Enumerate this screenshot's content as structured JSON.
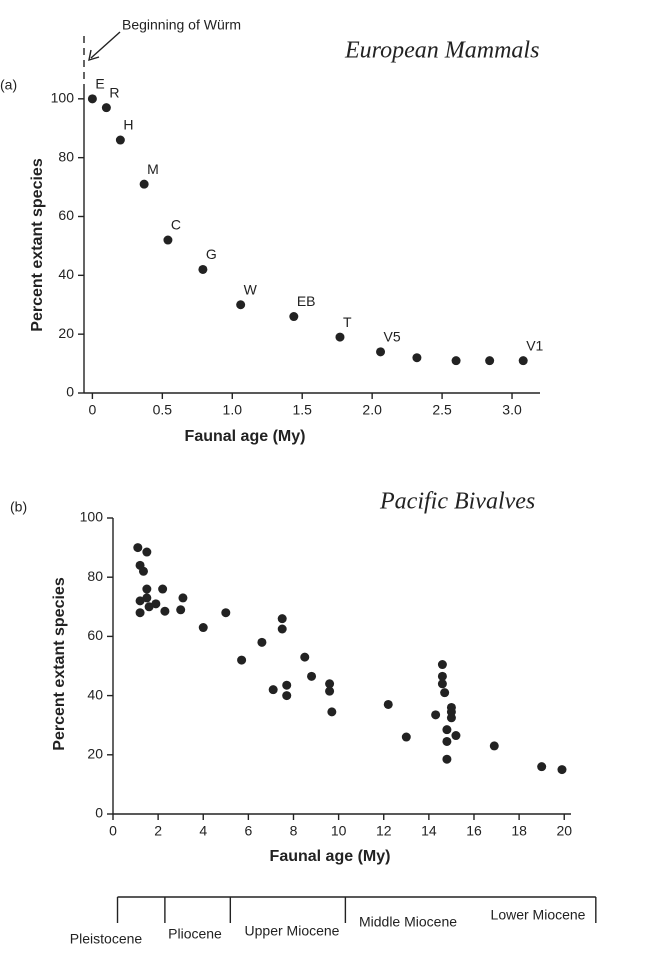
{
  "chart_data": [
    {
      "type": "scatter",
      "panel_label": "(a)",
      "handwritten_title": "European Mammals",
      "annotation": "Beginning of Würm",
      "x_label": "Faunal age (My)",
      "y_label": "Percent extant species",
      "xlim": [
        -0.06,
        3.2
      ],
      "ylim": [
        0,
        103
      ],
      "xticks": [
        0,
        0.5,
        {
          "value": 1,
          "label": "1.0"
        },
        1.5,
        {
          "value": 2,
          "label": "2.0"
        },
        2.5,
        {
          "value": 3,
          "label": "3.0"
        }
      ],
      "yticks": [
        0,
        20,
        40,
        60,
        80,
        100
      ],
      "color": "#222222",
      "x": [
        0,
        0.1,
        0.2,
        0.37,
        0.54,
        0.79,
        1.06,
        1.44,
        1.77,
        2.06,
        2.32,
        2.6,
        2.84,
        3.08
      ],
      "values": [
        100,
        97,
        86,
        71,
        52,
        42,
        30,
        26,
        19,
        14,
        12,
        11,
        11,
        11
      ],
      "point_labels": [
        "E",
        "R",
        "H",
        "M",
        "C",
        "G",
        "W",
        "EB",
        "T",
        "V5",
        null,
        null,
        null,
        "V1"
      ]
    },
    {
      "type": "scatter",
      "panel_label": "(b)",
      "handwritten_title": "Pacific Bivalves",
      "x_label": "Faunal age (My)",
      "y_label": "Percent extant species",
      "xlim": [
        0,
        20.3
      ],
      "ylim": [
        0,
        100
      ],
      "xticks": [
        0,
        2,
        4,
        6,
        8,
        10,
        12,
        14,
        16,
        18,
        20
      ],
      "yticks": [
        0,
        20,
        40,
        60,
        80,
        100
      ],
      "color": "#222222",
      "x": [
        1.1,
        1.5,
        1.2,
        1.35,
        1.5,
        2.2,
        1.2,
        1.5,
        3.1,
        1.2,
        1.6,
        1.9,
        2.3,
        3.0,
        4.0,
        5.0,
        5.7,
        6.6,
        7.5,
        7.5,
        8.5,
        7.1,
        7.7,
        7.7,
        8.8,
        9.6,
        9.6,
        9.7,
        12.2,
        13.0,
        14.3,
        14.6,
        14.6,
        14.6,
        14.7,
        15.0,
        15.0,
        15.0,
        14.8,
        15.2,
        14.8,
        14.8,
        16.9,
        19.0,
        19.9
      ],
      "values": [
        90,
        88.5,
        84,
        82,
        76,
        76,
        72,
        73,
        73,
        68,
        70,
        71,
        68.5,
        69,
        63,
        68,
        52,
        58,
        66,
        62.5,
        53,
        42,
        43.5,
        40,
        46.5,
        44,
        41.5,
        34.5,
        37,
        26,
        33.5,
        50.5,
        46.5,
        44,
        41,
        36,
        34.5,
        32.5,
        28.5,
        26.5,
        24.5,
        18.5,
        23,
        16,
        15
      ],
      "epochs": [
        "Pleistocene",
        "Pliocene",
        "Upper Miocene",
        "Middle Miocene",
        "Lower Miocene"
      ],
      "epoch_boundaries": [
        0.2,
        2.3,
        5.2,
        10.3,
        21.4
      ]
    }
  ]
}
